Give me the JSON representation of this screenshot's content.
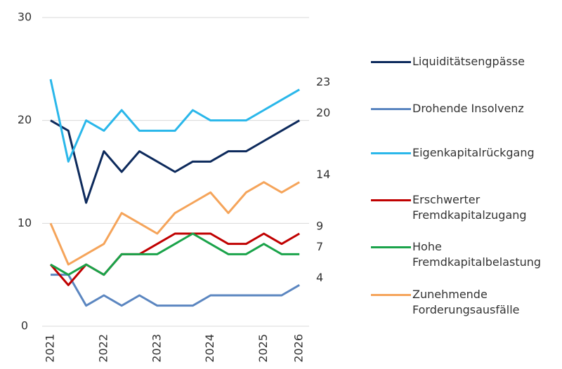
{
  "chart_data": {
    "type": "line",
    "categories": [
      "2021",
      null,
      null,
      "2022",
      null,
      null,
      "2023",
      null,
      null,
      "2024",
      null,
      null,
      "2025",
      null,
      "2026"
    ],
    "series": [
      {
        "name": "Liquiditätsengpässe",
        "color": "#0d2a5c",
        "values": [
          20,
          19,
          12,
          17,
          15,
          17,
          16,
          15,
          16,
          16,
          17,
          17,
          18,
          19,
          20
        ]
      },
      {
        "name": "Drohende Insolvenz",
        "color": "#5b86c0",
        "values": [
          5,
          5,
          2,
          3,
          2,
          3,
          2,
          2,
          2,
          3,
          3,
          3,
          3,
          3,
          4
        ]
      },
      {
        "name": "Eigenkapitalrückgang",
        "color": "#2ab7ea",
        "values": [
          24,
          16,
          20,
          19,
          21,
          19,
          19,
          19,
          21,
          20,
          20,
          20,
          21,
          22,
          23
        ]
      },
      {
        "name": "Erschwerter Fremdkapitalzugang",
        "color": "#c00000",
        "values": [
          6,
          4,
          6,
          5,
          7,
          7,
          8,
          9,
          9,
          9,
          8,
          8,
          9,
          8,
          9
        ]
      },
      {
        "name": "Hohe Fremdkapitalbelastung",
        "color": "#1aa34a",
        "values": [
          6,
          5,
          6,
          5,
          7,
          7,
          7,
          8,
          9,
          8,
          7,
          7,
          8,
          7,
          7
        ]
      },
      {
        "name": "Zunehmende Forderungsausfälle",
        "color": "#f5a45a",
        "values": [
          10,
          6,
          7,
          8,
          11,
          10,
          9,
          11,
          12,
          13,
          11,
          13,
          14,
          13,
          14
        ]
      }
    ],
    "ylim": [
      0,
      30
    ],
    "yticks": [
      0,
      10,
      20,
      30
    ],
    "grid": true,
    "legend": "right"
  }
}
